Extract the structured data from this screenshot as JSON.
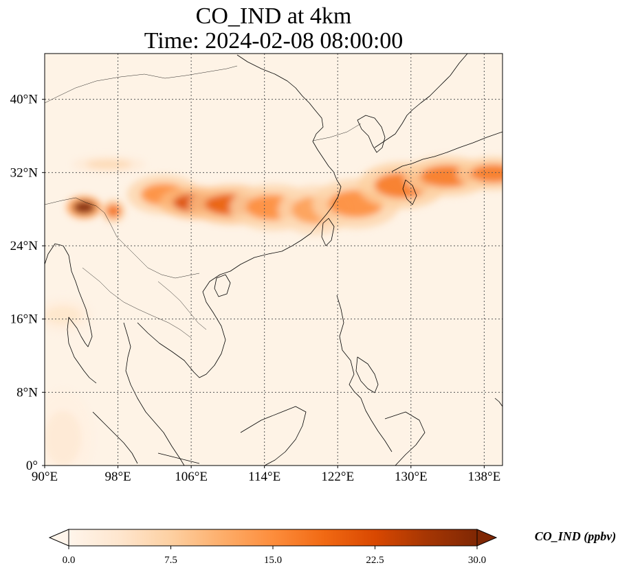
{
  "title": {
    "line1": "CO_IND at 4km",
    "line2": "Time: 2024-02-08 08:00:00"
  },
  "map": {
    "extent_lon": [
      90,
      140
    ],
    "extent_lat": [
      0,
      45
    ],
    "lon_ticks": [
      90,
      98,
      106,
      114,
      122,
      130,
      138
    ],
    "lat_ticks": [
      0,
      8,
      16,
      24,
      32,
      40
    ],
    "lon_tick_labels": [
      "90°E",
      "98°E",
      "106°E",
      "114°E",
      "122°E",
      "130°E",
      "138°E"
    ],
    "lat_tick_labels": [
      "0°",
      "8°N",
      "16°N",
      "24°N",
      "32°N",
      "40°N"
    ],
    "gridlines": true
  },
  "colorbar": {
    "label": "CO_IND (ppbv)",
    "min": 0,
    "max": 30,
    "ticks": [
      "0.0",
      "7.5",
      "15.0",
      "22.5",
      "30.0"
    ],
    "extend": "both",
    "colormap": [
      "#fff5eb",
      "#fee6ce",
      "#fdd0a2",
      "#fdae6b",
      "#fd8d3c",
      "#f16913",
      "#d94801",
      "#a63603",
      "#7f2704"
    ]
  },
  "chart_data": {
    "type": "heatmap",
    "variable": "CO_IND",
    "units": "ppbv",
    "plumes": [
      {
        "lon": 94.3,
        "lat": 28.2,
        "value": 30,
        "spread_lon": 1.2,
        "spread_lat": 0.7
      },
      {
        "lon": 97.5,
        "lat": 27.8,
        "value": 18,
        "spread_lon": 0.8,
        "spread_lat": 0.7
      },
      {
        "lon": 103,
        "lat": 29.6,
        "value": 15,
        "spread_lon": 2.5,
        "spread_lat": 1.2
      },
      {
        "lon": 106.5,
        "lat": 28.7,
        "value": 22,
        "spread_lon": 2.5,
        "spread_lat": 1.0
      },
      {
        "lon": 110.5,
        "lat": 28.5,
        "value": 20,
        "spread_lon": 3.0,
        "spread_lat": 1.2
      },
      {
        "lon": 115,
        "lat": 28.2,
        "value": 15,
        "spread_lon": 3.0,
        "spread_lat": 1.4
      },
      {
        "lon": 119.5,
        "lat": 27.9,
        "value": 13,
        "spread_lon": 2.5,
        "spread_lat": 1.5
      },
      {
        "lon": 124,
        "lat": 28.6,
        "value": 15,
        "spread_lon": 3.0,
        "spread_lat": 1.5
      },
      {
        "lon": 129,
        "lat": 30.6,
        "value": 17,
        "spread_lon": 3.0,
        "spread_lat": 1.4
      },
      {
        "lon": 134,
        "lat": 31.6,
        "value": 17,
        "spread_lon": 3.0,
        "spread_lat": 1.2
      },
      {
        "lon": 139,
        "lat": 31.9,
        "value": 17,
        "spread_lon": 2.5,
        "spread_lat": 1.0
      },
      {
        "lon": 97,
        "lat": 32.9,
        "value": 6,
        "spread_lon": 2.5,
        "spread_lat": 0.5
      },
      {
        "lon": 92,
        "lat": 16.4,
        "value": 4,
        "spread_lon": 2.0,
        "spread_lat": 1.0
      },
      {
        "lon": 92,
        "lat": 3,
        "value": 3,
        "spread_lon": 2.0,
        "spread_lat": 3.0
      }
    ]
  }
}
